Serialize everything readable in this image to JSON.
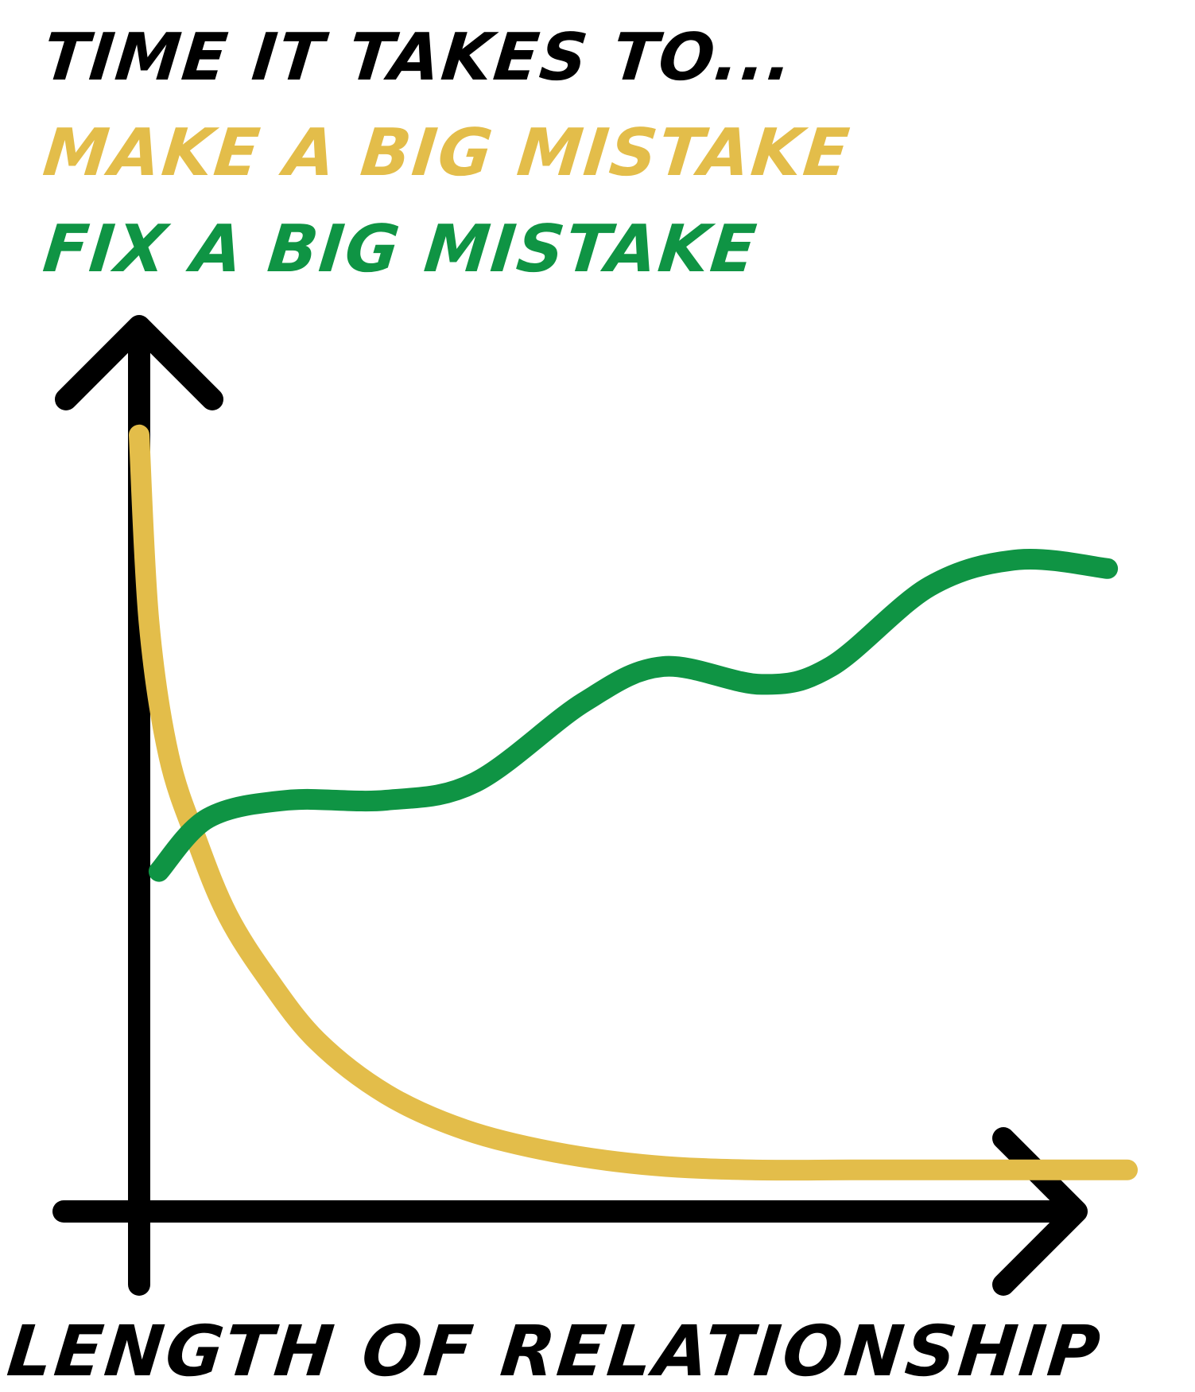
{
  "chart_data": {
    "type": "line",
    "title": "TIME IT TAKES TO...",
    "xlabel": "LENGTH OF RELATIONSHIP",
    "ylabel": "",
    "grid": false,
    "legend": "top-left",
    "xlim": [
      0,
      100
    ],
    "ylim": [
      0,
      100
    ],
    "series": [
      {
        "name": "MAKE A BIG MISTAKE",
        "color": "#E3BD4A",
        "x": [
          0,
          1,
          3,
          6,
          9,
          13,
          18,
          25,
          33,
          42,
          52,
          62,
          72,
          82,
          92,
          100
        ],
        "y": [
          86,
          65,
          50,
          40,
          32,
          25,
          18,
          12,
          8,
          5.5,
          4,
          3.5,
          3.5,
          3.5,
          3.5,
          3.5
        ]
      },
      {
        "name": "FIX A BIG MISTAKE",
        "color": "#0F9444",
        "x": [
          2,
          7,
          15,
          25,
          34,
          45,
          53,
          63,
          70,
          80,
          89,
          98
        ],
        "y": [
          37,
          43,
          45,
          45,
          47,
          56,
          60,
          58,
          60,
          69,
          72,
          71
        ]
      }
    ]
  },
  "axis_color": "#000000"
}
